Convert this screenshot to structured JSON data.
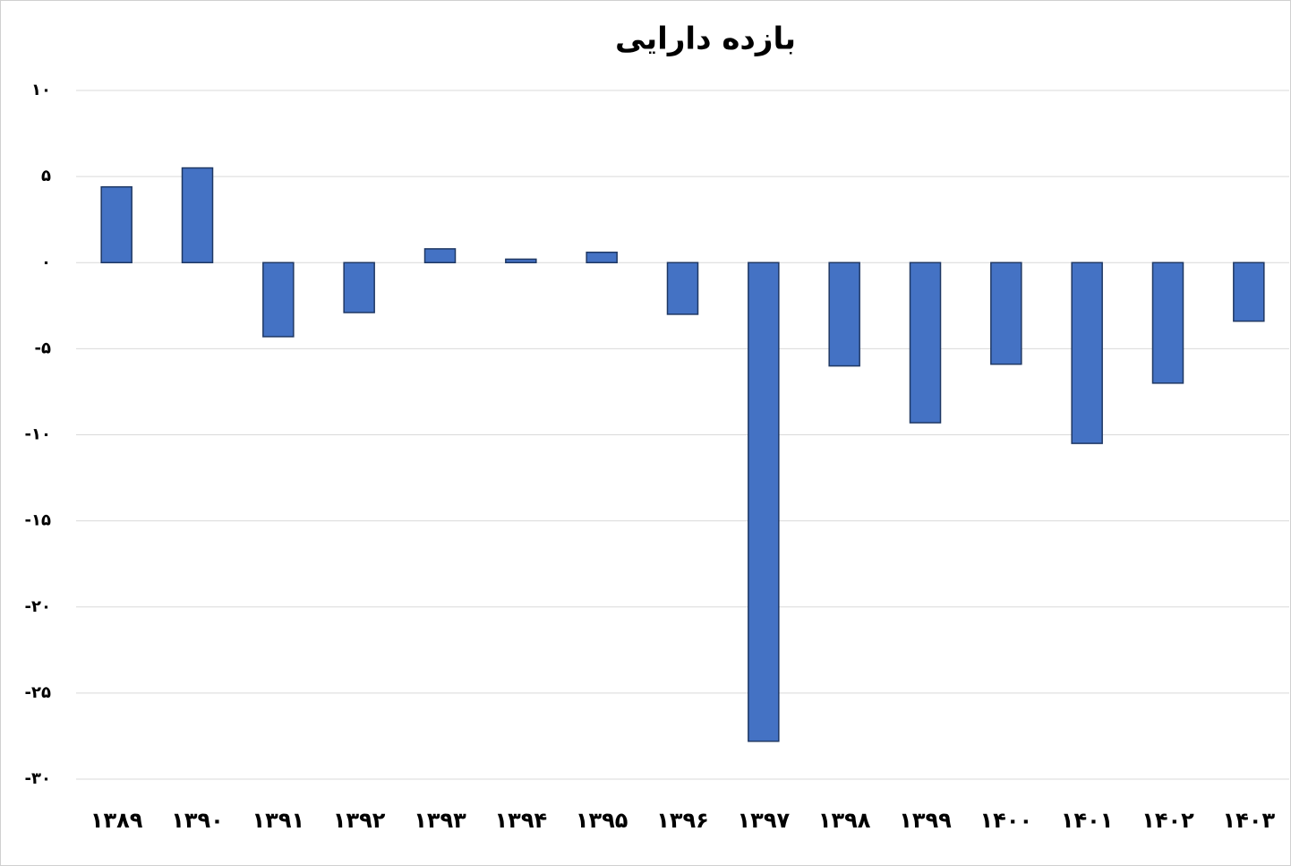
{
  "chart_data": {
    "type": "bar",
    "title": "بازده دارایی",
    "categories": [
      "۱۳۸۹",
      "۱۳۹۰",
      "۱۳۹۱",
      "۱۳۹۲",
      "۱۳۹۳",
      "۱۳۹۴",
      "۱۳۹۵",
      "۱۳۹۶",
      "۱۳۹۷",
      "۱۳۹۸",
      "۱۳۹۹",
      "۱۴۰۰",
      "۱۴۰۱",
      "۱۴۰۲",
      "۱۴۰۳"
    ],
    "values": [
      4.4,
      5.5,
      -4.3,
      -2.9,
      0.8,
      0.2,
      0.6,
      -3.0,
      -27.8,
      -6.0,
      -9.3,
      -5.9,
      -10.5,
      -7.0,
      -3.4
    ],
    "color": "#4472c4",
    "ylim": [
      -30,
      10
    ],
    "yticks": [
      {
        "value": 10,
        "label": "۱۰"
      },
      {
        "value": 5,
        "label": "۵"
      },
      {
        "value": 0,
        "label": "۰"
      },
      {
        "value": -5,
        "label": "-۵"
      },
      {
        "value": -10,
        "label": "-۱۰"
      },
      {
        "value": -15,
        "label": "-۱۵"
      },
      {
        "value": -20,
        "label": "-۲۰"
      },
      {
        "value": -25,
        "label": "-۲۵"
      },
      {
        "value": -30,
        "label": "-۳۰"
      }
    ],
    "grid": true
  }
}
